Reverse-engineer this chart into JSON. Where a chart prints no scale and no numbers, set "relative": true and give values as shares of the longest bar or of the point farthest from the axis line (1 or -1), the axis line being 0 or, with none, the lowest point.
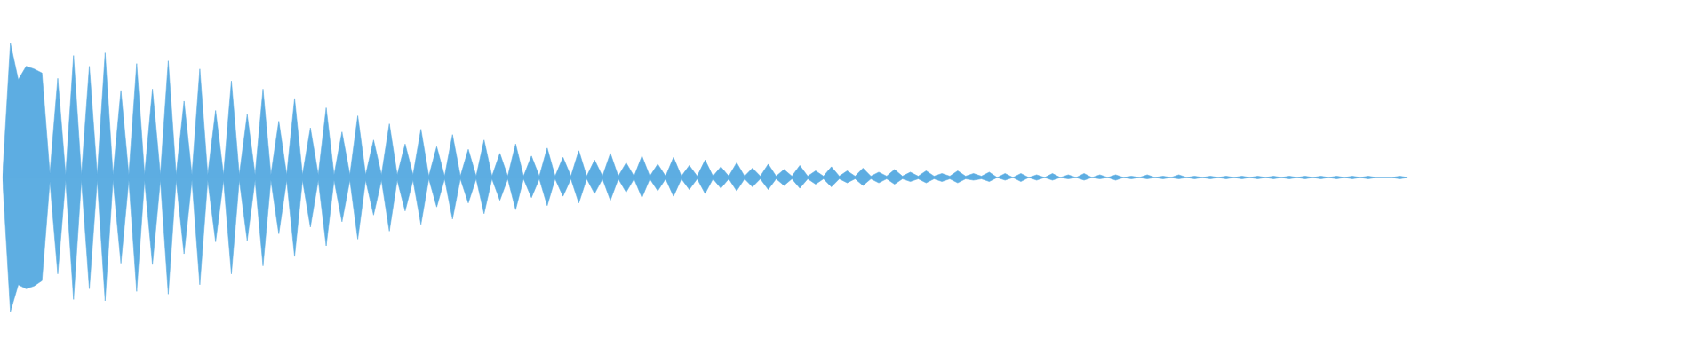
{
  "chart_data": {
    "type": "area",
    "relative": true,
    "categories": [
      null,
      null,
      null,
      null,
      null,
      null,
      null,
      null,
      null,
      null,
      null,
      null,
      null,
      null,
      null,
      null,
      null,
      null,
      null,
      null,
      null,
      null,
      null,
      null,
      null,
      null,
      null,
      null,
      null,
      null,
      null,
      null,
      null,
      null,
      null,
      null,
      null,
      null,
      null,
      null,
      null,
      null,
      null,
      null,
      null,
      null,
      null,
      null,
      null,
      null,
      null,
      null,
      null,
      null,
      null,
      null,
      null,
      null,
      null,
      null,
      null,
      null,
      null,
      null,
      null,
      null,
      null,
      null,
      null,
      null,
      null,
      null,
      null,
      null,
      null,
      null,
      null,
      null,
      null,
      null,
      null,
      null,
      null,
      null,
      null,
      null,
      null,
      null,
      null,
      null,
      null,
      null,
      null,
      null,
      null,
      null,
      null,
      null,
      null,
      null,
      null,
      null,
      null,
      null,
      null,
      null,
      null,
      null,
      null,
      null,
      null,
      null,
      null,
      null,
      null,
      null,
      null,
      null,
      null,
      null,
      null,
      null,
      null,
      null,
      null,
      null,
      null,
      null,
      null,
      null,
      null,
      null,
      null,
      null,
      null,
      null,
      null,
      null,
      null,
      null,
      null,
      null,
      null,
      null,
      null,
      null,
      null,
      null,
      null,
      null,
      null,
      null,
      null,
      null,
      null,
      null,
      null,
      null,
      null,
      null,
      null,
      null,
      null,
      null,
      null,
      null,
      null,
      null,
      null,
      null,
      null,
      null,
      null,
      null,
      null,
      null,
      null,
      null,
      null
    ],
    "series": [
      {
        "color": "#5dade2",
        "values": [
          0.5,
          1,
          0.865,
          0.915,
          0.905,
          0.89,
          0.515,
          0.87,
          0.51,
          0.955,
          0.51,
          0.915,
          0.51,
          0.965,
          0.51,
          0.825,
          0.51,
          0.925,
          0.51,
          0.83,
          0.51,
          0.935,
          0.51,
          0.785,
          0.51,
          0.905,
          0.51,
          0.75,
          0.51,
          0.86,
          0.51,
          0.735,
          0.51,
          0.83,
          0.51,
          0.71,
          0.51,
          0.795,
          0.51,
          0.685,
          0.51,
          0.76,
          0.51,
          0.67,
          0.51,
          0.73,
          0.51,
          0.64,
          0.51,
          0.7,
          0.51,
          0.625,
          0.51,
          0.68,
          0.505,
          0.615,
          0.505,
          0.66,
          0.505,
          0.605,
          0.505,
          0.64,
          0.505,
          0.59,
          0.505,
          0.625,
          0.505,
          0.58,
          0.505,
          0.61,
          0.505,
          0.575,
          0.505,
          0.6,
          0.505,
          0.565,
          0.505,
          0.59,
          0.505,
          0.555,
          0.505,
          0.58,
          0.505,
          0.55,
          0.505,
          0.575,
          0.505,
          0.545,
          0.505,
          0.565,
          0.505,
          0.54,
          0.505,
          0.555,
          0.505,
          0.535,
          0.505,
          0.55,
          0.505,
          0.53,
          0.505,
          0.545,
          0.505,
          0.525,
          0.505,
          0.54,
          0.505,
          0.525,
          0.505,
          0.535,
          0.505,
          0.52,
          0.505,
          0.53,
          0.505,
          0.52,
          0.505,
          0.525,
          0.505,
          0.515,
          0.505,
          0.525,
          0.505,
          0.515,
          0.505,
          0.52,
          0.5,
          0.515,
          0.5,
          0.515,
          0.5,
          0.51,
          0.5,
          0.515,
          0.5,
          0.51,
          0.5,
          0.515,
          0.5,
          0.51,
          0.5,
          0.51,
          0.5,
          0.505,
          0.5,
          0.51,
          0.5,
          0.505,
          0.5,
          0.51,
          0.5,
          0.505,
          0.5,
          0.505,
          0.5,
          0.505,
          0.5,
          0.505,
          0.5,
          0.505,
          0.5,
          0.505,
          0.5,
          0.505,
          0.5,
          0.505,
          0.5,
          0.505,
          0.5,
          0.505,
          0.5,
          0.505,
          0.5,
          0.505,
          0.5,
          0.5,
          0.5,
          0.505,
          0.5
        ]
      },
      {
        "color": "#5eaee2",
        "values": [
          0.5,
          0,
          0.1,
          0.085,
          0.095,
          0.115,
          0.485,
          0.14,
          0.49,
          0.045,
          0.49,
          0.085,
          0.49,
          0.04,
          0.49,
          0.18,
          0.49,
          0.075,
          0.49,
          0.175,
          0.49,
          0.065,
          0.49,
          0.215,
          0.49,
          0.1,
          0.49,
          0.26,
          0.49,
          0.14,
          0.49,
          0.265,
          0.49,
          0.17,
          0.49,
          0.29,
          0.49,
          0.205,
          0.49,
          0.315,
          0.49,
          0.245,
          0.49,
          0.335,
          0.49,
          0.27,
          0.49,
          0.36,
          0.49,
          0.3,
          0.49,
          0.375,
          0.49,
          0.325,
          0.495,
          0.39,
          0.495,
          0.345,
          0.495,
          0.405,
          0.495,
          0.365,
          0.495,
          0.415,
          0.495,
          0.38,
          0.495,
          0.425,
          0.495,
          0.395,
          0.495,
          0.43,
          0.495,
          0.405,
          0.495,
          0.44,
          0.495,
          0.415,
          0.495,
          0.445,
          0.495,
          0.425,
          0.495,
          0.45,
          0.495,
          0.43,
          0.495,
          0.455,
          0.495,
          0.44,
          0.495,
          0.46,
          0.495,
          0.45,
          0.495,
          0.465,
          0.495,
          0.455,
          0.495,
          0.47,
          0.495,
          0.46,
          0.495,
          0.475,
          0.495,
          0.465,
          0.495,
          0.48,
          0.495,
          0.47,
          0.495,
          0.48,
          0.495,
          0.475,
          0.495,
          0.485,
          0.495,
          0.48,
          0.495,
          0.485,
          0.495,
          0.48,
          0.495,
          0.49,
          0.495,
          0.485,
          0.5,
          0.49,
          0.5,
          0.485,
          0.5,
          0.49,
          0.5,
          0.49,
          0.5,
          0.495,
          0.5,
          0.49,
          0.5,
          0.495,
          0.5,
          0.49,
          0.5,
          0.495,
          0.5,
          0.495,
          0.5,
          0.495,
          0.5,
          0.495,
          0.5,
          0.495,
          0.5,
          0.495,
          0.5,
          0.495,
          0.5,
          0.495,
          0.5,
          0.495,
          0.5,
          0.495,
          0.5,
          0.495,
          0.5,
          0.495,
          0.5,
          0.495,
          0.5,
          0.495,
          0.5,
          0.495,
          0.5,
          0.495,
          0.5,
          0.5,
          0.5,
          0.495,
          0.5
        ]
      }
    ]
  }
}
